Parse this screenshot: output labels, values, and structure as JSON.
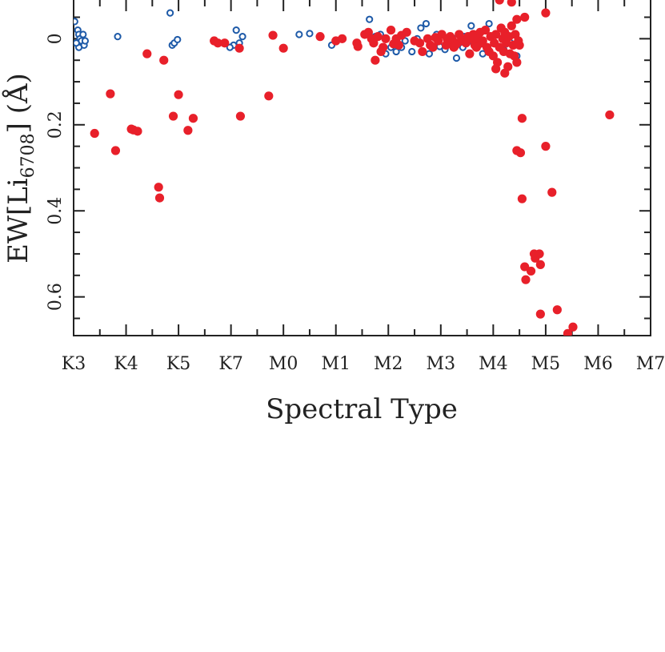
{
  "chart_data": {
    "type": "scatter",
    "title": "",
    "xlabel": "Spectral Type",
    "ylabel": {
      "prefix": "EW[Li",
      "subscript": "6708",
      "suffix": "] (Å)"
    },
    "x_ticks": [
      "K3",
      "K4",
      "K5",
      "K7",
      "M0",
      "M1",
      "M2",
      "M3",
      "M4",
      "M5",
      "M6",
      "M7"
    ],
    "y_ticks": [
      {
        "value": 0,
        "label": "0"
      },
      {
        "value": 0.2,
        "label": "0.2"
      },
      {
        "value": 0.4,
        "label": "0.4"
      },
      {
        "value": 0.6,
        "label": "0.6"
      }
    ],
    "xlim": [
      0,
      11
    ],
    "ylim": [
      -0.09,
      0.69
    ],
    "y_inverted": true,
    "grid": false,
    "legend": "none",
    "colors": {
      "open": "#1e5aa8",
      "filled": "#e8202a"
    },
    "series": [
      {
        "marker": "open-circle",
        "points": [
          [
            0.02,
            -0.04
          ],
          [
            0.08,
            -0.02
          ],
          [
            0.1,
            -0.01
          ],
          [
            0.12,
            0.0
          ],
          [
            0.15,
            0.005
          ],
          [
            0.18,
            -0.01
          ],
          [
            0.2,
            0.015
          ],
          [
            0.1,
            0.02
          ],
          [
            0.05,
            0.01
          ],
          [
            0.22,
            0.005
          ],
          [
            0.84,
            -0.005
          ],
          [
            1.84,
            -0.06
          ],
          [
            1.88,
            0.015
          ],
          [
            1.92,
            0.01
          ],
          [
            1.98,
            0.002
          ],
          [
            3.1,
            -0.02
          ],
          [
            3.05,
            0.015
          ],
          [
            3.22,
            -0.005
          ],
          [
            3.16,
            0.01
          ],
          [
            2.98,
            0.02
          ],
          [
            4.3,
            -0.01
          ],
          [
            4.5,
            -0.012
          ],
          [
            4.92,
            0.015
          ],
          [
            5.64,
            -0.045
          ],
          [
            5.75,
            -0.005
          ],
          [
            5.85,
            -0.01
          ],
          [
            5.95,
            0.035
          ],
          [
            6.05,
            0.02
          ],
          [
            6.15,
            0.03
          ],
          [
            6.25,
            0.02
          ],
          [
            6.32,
            0.005
          ],
          [
            6.45,
            0.03
          ],
          [
            6.55,
            0.0
          ],
          [
            6.62,
            -0.025
          ],
          [
            6.72,
            -0.035
          ],
          [
            6.78,
            0.035
          ],
          [
            6.85,
            0.02
          ],
          [
            6.92,
            -0.01
          ],
          [
            6.98,
            0.018
          ],
          [
            7.08,
            0.025
          ],
          [
            7.18,
            0.005
          ],
          [
            7.28,
            0.0
          ],
          [
            7.3,
            0.045
          ],
          [
            7.42,
            0.02
          ],
          [
            7.45,
            -0.005
          ],
          [
            7.55,
            0.005
          ],
          [
            7.58,
            -0.03
          ],
          [
            7.65,
            0.0
          ],
          [
            7.72,
            0.015
          ],
          [
            7.8,
            0.035
          ],
          [
            7.92,
            -0.035
          ],
          [
            8.02,
            0.01
          ],
          [
            8.12,
            0.02
          ],
          [
            8.2,
            0.025
          ],
          [
            8.4,
            0.0
          ],
          [
            8.45,
            0.04
          ]
        ]
      },
      {
        "marker": "filled-circle",
        "points": [
          [
            0.4,
            0.22
          ],
          [
            0.7,
            0.128
          ],
          [
            0.8,
            0.26
          ],
          [
            1.1,
            0.21
          ],
          [
            1.14,
            0.212
          ],
          [
            1.22,
            0.215
          ],
          [
            1.4,
            0.035
          ],
          [
            1.62,
            0.345
          ],
          [
            1.64,
            0.37
          ],
          [
            1.72,
            0.05
          ],
          [
            1.9,
            0.18
          ],
          [
            2.0,
            0.13
          ],
          [
            2.18,
            0.213
          ],
          [
            2.28,
            0.185
          ],
          [
            2.68,
            0.005
          ],
          [
            2.75,
            0.01
          ],
          [
            2.88,
            0.01
          ],
          [
            3.16,
            0.022
          ],
          [
            3.18,
            0.18
          ],
          [
            3.72,
            0.133
          ],
          [
            3.8,
            -0.008
          ],
          [
            4.0,
            0.022
          ],
          [
            4.7,
            -0.005
          ],
          [
            5.0,
            0.005
          ],
          [
            5.12,
            0.0
          ],
          [
            5.4,
            0.01
          ],
          [
            5.42,
            0.018
          ],
          [
            5.55,
            -0.01
          ],
          [
            5.62,
            -0.015
          ],
          [
            5.68,
            0.0
          ],
          [
            5.72,
            0.01
          ],
          [
            5.75,
            0.05
          ],
          [
            5.8,
            -0.005
          ],
          [
            5.86,
            0.03
          ],
          [
            5.9,
            0.02
          ],
          [
            5.95,
            0.0
          ],
          [
            6.05,
            -0.02
          ],
          [
            6.1,
            0.012
          ],
          [
            6.15,
            0.0
          ],
          [
            6.2,
            0.015
          ],
          [
            6.25,
            -0.008
          ],
          [
            6.35,
            -0.015
          ],
          [
            6.5,
            0.005
          ],
          [
            6.6,
            0.01
          ],
          [
            6.65,
            0.03
          ],
          [
            6.75,
            0.0
          ],
          [
            6.8,
            0.015
          ],
          [
            6.85,
            0.02
          ],
          [
            6.9,
            -0.003
          ],
          [
            6.95,
            0.005
          ],
          [
            7.02,
            -0.01
          ],
          [
            7.1,
            0.015
          ],
          [
            7.12,
            0.0
          ],
          [
            7.15,
            0.01
          ],
          [
            7.18,
            -0.005
          ],
          [
            7.22,
            0.003
          ],
          [
            7.25,
            0.02
          ],
          [
            7.28,
            0.015
          ],
          [
            7.32,
            0.01
          ],
          [
            7.35,
            -0.01
          ],
          [
            7.4,
            0.0
          ],
          [
            7.45,
            0.005
          ],
          [
            7.48,
            0.01
          ],
          [
            7.52,
            -0.005
          ],
          [
            7.55,
            0.035
          ],
          [
            7.58,
            0.0
          ],
          [
            7.62,
            -0.01
          ],
          [
            7.65,
            0.015
          ],
          [
            7.68,
            0.02
          ],
          [
            7.72,
            0.0
          ],
          [
            7.75,
            -0.015
          ],
          [
            7.78,
            0.01
          ],
          [
            7.8,
            0.005
          ],
          [
            7.85,
            -0.02
          ],
          [
            7.88,
            0.02
          ],
          [
            7.92,
            0.03
          ],
          [
            7.95,
            -0.005
          ],
          [
            8.0,
            0.04
          ],
          [
            8.02,
            0.01
          ],
          [
            8.05,
            -0.01
          ],
          [
            8.08,
            0.055
          ],
          [
            8.12,
            0.02
          ],
          [
            8.15,
            -0.025
          ],
          [
            8.18,
            0.0
          ],
          [
            8.2,
            0.03
          ],
          [
            8.22,
            -0.015
          ],
          [
            8.25,
            0.01
          ],
          [
            8.28,
            0.065
          ],
          [
            8.3,
            -0.005
          ],
          [
            8.32,
            0.035
          ],
          [
            8.35,
            -0.03
          ],
          [
            8.38,
            0.015
          ],
          [
            8.4,
            0.04
          ],
          [
            8.42,
            -0.01
          ],
          [
            8.45,
            0.055
          ],
          [
            8.48,
            0.005
          ],
          [
            8.5,
            0.015
          ],
          [
            8.12,
            -0.09
          ],
          [
            8.35,
            -0.085
          ],
          [
            8.45,
            -0.045
          ],
          [
            8.6,
            -0.05
          ],
          [
            8.05,
            0.07
          ],
          [
            8.22,
            0.08
          ],
          [
            8.45,
            0.26
          ],
          [
            8.52,
            0.265
          ],
          [
            8.55,
            0.185
          ],
          [
            8.55,
            0.372
          ],
          [
            8.6,
            0.53
          ],
          [
            8.62,
            0.56
          ],
          [
            8.72,
            0.54
          ],
          [
            8.78,
            0.5
          ],
          [
            8.8,
            0.51
          ],
          [
            8.88,
            0.5
          ],
          [
            8.9,
            0.525
          ],
          [
            8.9,
            0.64
          ],
          [
            9.0,
            0.25
          ],
          [
            9.0,
            -0.06
          ],
          [
            9.12,
            0.357
          ],
          [
            9.22,
            0.63
          ],
          [
            9.42,
            0.685
          ],
          [
            9.52,
            0.67
          ],
          [
            10.22,
            0.177
          ]
        ]
      }
    ]
  }
}
